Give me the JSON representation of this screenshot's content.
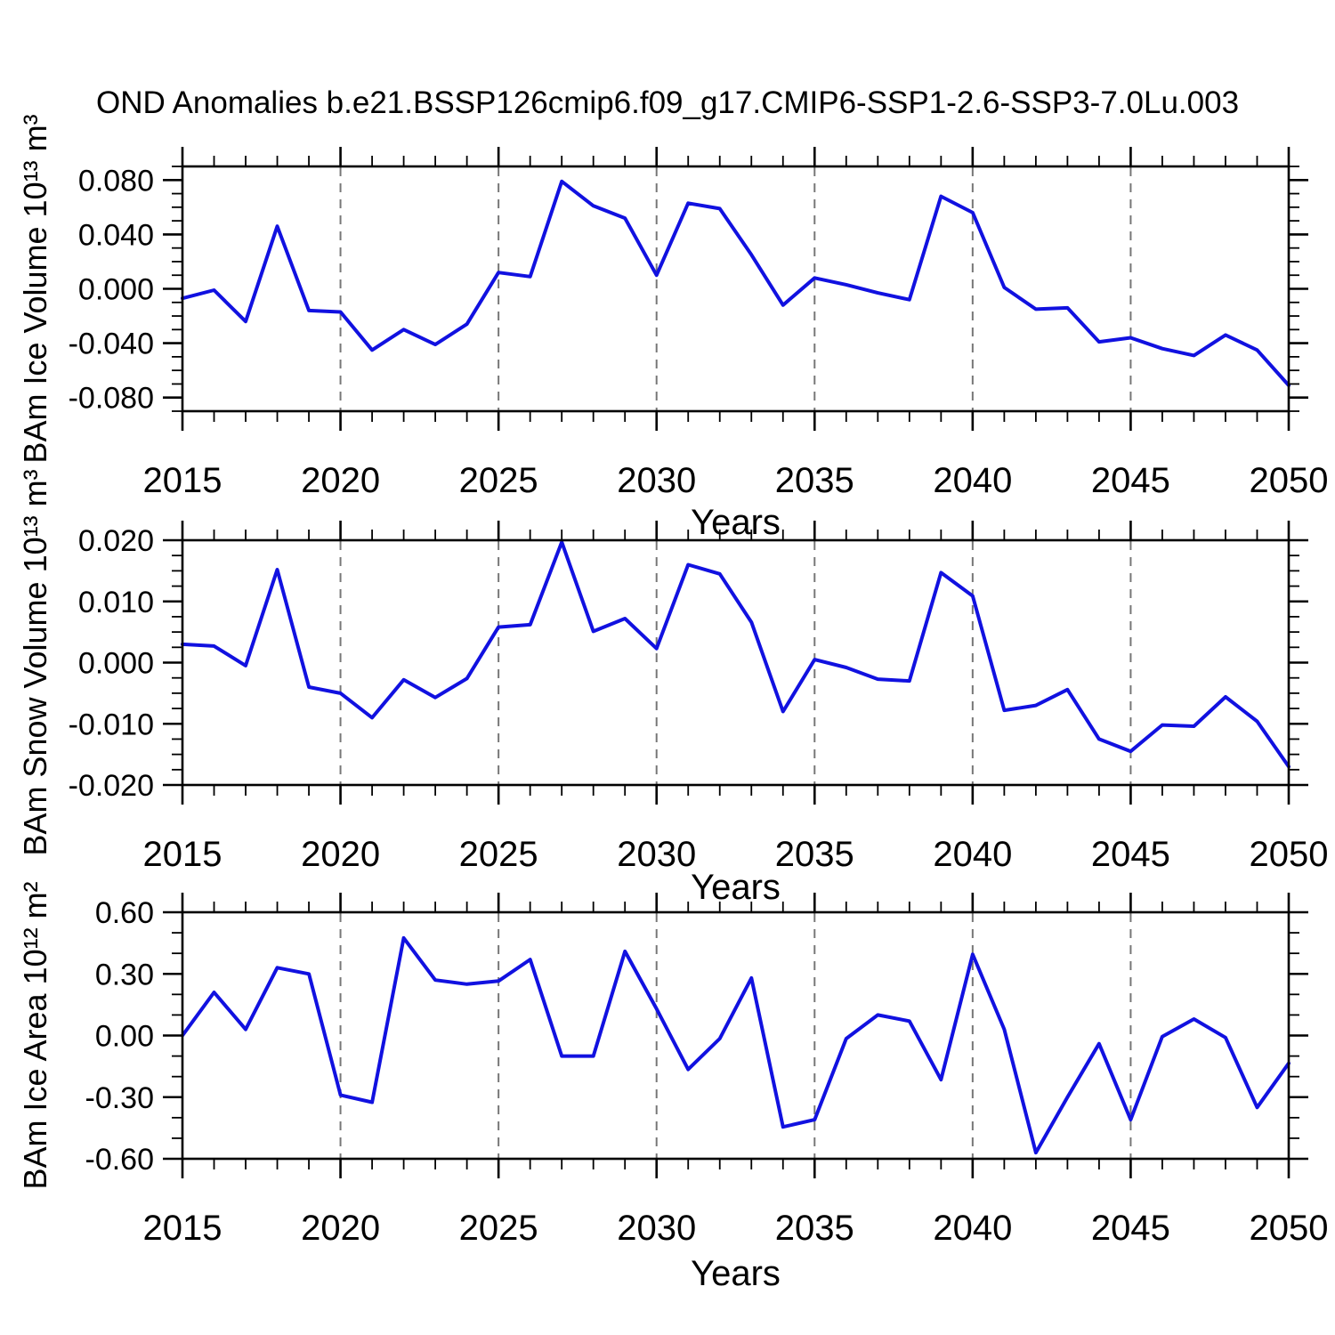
{
  "title": "OND Anomalies b.e21.BSSP126cmip6.f09_g17.CMIP6-SSP1-2.6-SSP3-7.0Lu.003",
  "colors": {
    "line": "#1111e0",
    "grid": "#777777",
    "axis": "#000000",
    "text": "#000000",
    "background": "#ffffff"
  },
  "chart_data": {
    "type": "line",
    "x_axis": {
      "label": "Years",
      "start": 2015,
      "end": 2050,
      "major_ticks": [
        "2015",
        "2020",
        "2025",
        "2030",
        "2035",
        "2040",
        "2045",
        "2050"
      ],
      "minor_step": 1,
      "gridline_years": [
        2020,
        2025,
        2030,
        2035,
        2040,
        2045
      ]
    },
    "panels": [
      {
        "ylabel": "BAm Ice Volume 10¹³ m³",
        "ylim": [
          -0.09,
          0.09
        ],
        "ytick_values": [
          0.08,
          0.04,
          0.0,
          -0.04,
          -0.08
        ],
        "ytick_labels": [
          "0.080",
          "0.040",
          "0.000",
          "-0.040",
          "-0.080"
        ],
        "y_minor_step": 0.01,
        "values": [
          -0.007,
          -0.001,
          -0.024,
          0.046,
          -0.016,
          -0.017,
          -0.045,
          -0.03,
          -0.041,
          -0.026,
          0.012,
          0.009,
          0.079,
          0.061,
          0.052,
          0.01,
          0.063,
          0.059,
          0.025,
          -0.012,
          0.008,
          0.003,
          -0.003,
          -0.008,
          0.068,
          0.056,
          0.001,
          -0.015,
          -0.014,
          -0.039,
          -0.036,
          -0.044,
          -0.049,
          -0.034,
          -0.045,
          -0.071
        ]
      },
      {
        "ylabel": "BAm Snow Volume 10¹³ m³",
        "ylim": [
          -0.02,
          0.02
        ],
        "ytick_values": [
          0.02,
          0.01,
          0.0,
          -0.01,
          -0.02
        ],
        "ytick_labels": [
          "0.020",
          "0.010",
          "0.000",
          "-0.010",
          "-0.020"
        ],
        "y_minor_step": 0.0025,
        "values": [
          0.003,
          0.0027,
          -0.0005,
          0.0152,
          -0.004,
          -0.005,
          -0.009,
          -0.0028,
          -0.0057,
          -0.0026,
          0.0058,
          0.0062,
          0.0197,
          0.0051,
          0.0072,
          0.0023,
          0.016,
          0.0145,
          0.0066,
          -0.008,
          0.0005,
          -0.0008,
          -0.0027,
          -0.003,
          0.0147,
          0.0109,
          -0.0078,
          -0.007,
          -0.0044,
          -0.0125,
          -0.0145,
          -0.0102,
          -0.0104,
          -0.0056,
          -0.0096,
          -0.017
        ]
      },
      {
        "ylabel": "BAm Ice Area 10¹² m²",
        "ylim": [
          -0.6,
          0.6
        ],
        "ytick_values": [
          0.6,
          0.3,
          0.0,
          -0.3,
          -0.6
        ],
        "ytick_labels": [
          "0.60",
          "0.30",
          "0.00",
          "-0.30",
          "-0.60"
        ],
        "y_minor_step": 0.1,
        "values": [
          0.0,
          0.21,
          0.03,
          0.33,
          0.3,
          -0.29,
          -0.325,
          0.475,
          0.27,
          0.25,
          0.265,
          0.37,
          -0.1,
          -0.1,
          0.41,
          0.13,
          -0.165,
          -0.015,
          0.28,
          -0.445,
          -0.41,
          -0.015,
          0.1,
          0.07,
          -0.215,
          0.395,
          0.03,
          -0.57,
          -0.3,
          -0.04,
          -0.41,
          -0.005,
          0.08,
          -0.01,
          -0.35,
          -0.135
        ]
      }
    ]
  }
}
